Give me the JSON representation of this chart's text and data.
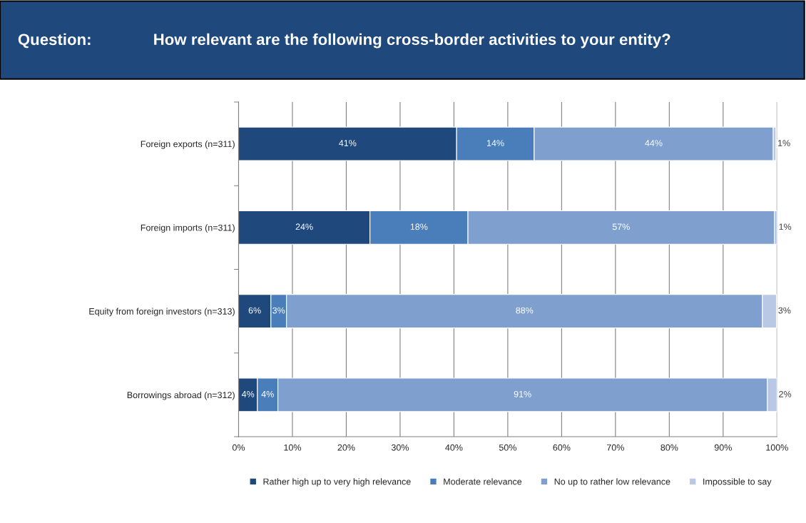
{
  "chart_data": {
    "type": "bar",
    "orientation": "horizontal",
    "stacked": true,
    "title": "Question:",
    "subtitle": "How relevant are the following cross-border activities to your entity?",
    "categories": [
      "Foreign exports (n=311)",
      "Foreign imports (n=311)",
      "Equity from foreign investors (n=313)",
      "Borrowings abroad (n=312)"
    ],
    "series": [
      {
        "name": "Rather high up to very high relevance",
        "color": "#1f497d",
        "values": [
          40.5,
          24.4,
          6,
          3.5
        ],
        "value_labels": [
          "41%",
          "24%",
          "6%",
          "4%"
        ]
      },
      {
        "name": "Moderate relevance",
        "color": "#4a7ebb",
        "values": [
          14.4,
          18.2,
          2.9,
          3.8
        ],
        "value_labels": [
          "14%",
          "18%",
          "3%",
          "4%"
        ]
      },
      {
        "name": "No up to rather low relevance",
        "color": "#7f9fcf",
        "values": [
          44.4,
          56.9,
          88.4,
          90.9
        ],
        "value_labels": [
          "44%",
          "57%",
          "88%",
          "91%"
        ]
      },
      {
        "name": "Impossible to say",
        "color": "#b9c9e5",
        "values": [
          0.5,
          0.5,
          2.6,
          1.8
        ],
        "value_labels": [
          "1%",
          "1%",
          "3%",
          "2%"
        ]
      }
    ],
    "xlim": [
      0,
      100
    ],
    "xticks": [
      {
        "value": 0,
        "label": "0%"
      },
      {
        "value": 10,
        "label": "10%"
      },
      {
        "value": 20,
        "label": "20%"
      },
      {
        "value": 30,
        "label": "30%"
      },
      {
        "value": 40,
        "label": "40%"
      },
      {
        "value": 50,
        "label": "50%"
      },
      {
        "value": 60,
        "label": "60%"
      },
      {
        "value": 70,
        "label": "70%"
      },
      {
        "value": 80,
        "label": "80%"
      },
      {
        "value": 90,
        "label": "90%"
      },
      {
        "value": 100,
        "label": "100%"
      }
    ],
    "grid": "x",
    "legend": "bottom"
  }
}
